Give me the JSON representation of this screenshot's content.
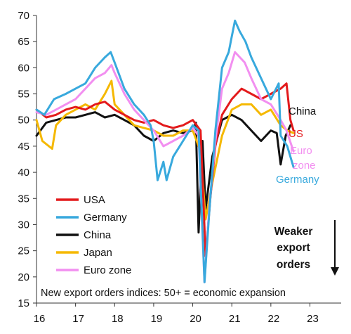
{
  "chart_data": {
    "type": "line",
    "title": "",
    "xlabel": "",
    "ylabel": "",
    "xlim": [
      2016.0,
      2023.8
    ],
    "ylim": [
      15,
      70
    ],
    "grid": false,
    "legend_position": "bottom-left",
    "yticks": [
      15,
      20,
      25,
      30,
      35,
      40,
      45,
      50,
      55,
      60,
      65,
      70
    ],
    "xticks": [
      {
        "value": 2016,
        "label": "16"
      },
      {
        "value": 2017,
        "label": "17"
      },
      {
        "value": 2018,
        "label": "18"
      },
      {
        "value": 2019,
        "label": "19"
      },
      {
        "value": 2020,
        "label": "20"
      },
      {
        "value": 2021,
        "label": "21"
      },
      {
        "value": 2022,
        "label": "22"
      },
      {
        "value": 2023,
        "label": "23"
      }
    ],
    "note": "New export orders indices: 50+ = economic expansion",
    "weaker_label": [
      "Weaker",
      "export",
      "orders"
    ],
    "series": [
      {
        "name": "USA",
        "label": "US",
        "color": "#e31a1c",
        "points": [
          [
            2016.0,
            52
          ],
          [
            2016.25,
            50.5
          ],
          [
            2016.5,
            51
          ],
          [
            2016.75,
            52
          ],
          [
            2017.0,
            52.5
          ],
          [
            2017.25,
            52
          ],
          [
            2017.5,
            53
          ],
          [
            2017.75,
            53.5
          ],
          [
            2018.0,
            52
          ],
          [
            2018.25,
            51
          ],
          [
            2018.5,
            50
          ],
          [
            2018.75,
            49.5
          ],
          [
            2019.0,
            50
          ],
          [
            2019.25,
            49
          ],
          [
            2019.5,
            48.5
          ],
          [
            2019.75,
            49
          ],
          [
            2020.0,
            50
          ],
          [
            2020.2,
            48
          ],
          [
            2020.33,
            24
          ],
          [
            2020.45,
            35
          ],
          [
            2020.58,
            45
          ],
          [
            2020.75,
            51
          ],
          [
            2021.0,
            54
          ],
          [
            2021.25,
            56
          ],
          [
            2021.5,
            55
          ],
          [
            2021.75,
            54
          ],
          [
            2022.0,
            55
          ],
          [
            2022.25,
            56
          ],
          [
            2022.4,
            57
          ],
          [
            2022.5,
            50
          ],
          [
            2022.58,
            48
          ]
        ]
      },
      {
        "name": "Germany",
        "label": "Germany",
        "color": "#38a9dd",
        "points": [
          [
            2016.0,
            52
          ],
          [
            2016.2,
            51
          ],
          [
            2016.45,
            54
          ],
          [
            2016.75,
            55
          ],
          [
            2017.0,
            56
          ],
          [
            2017.25,
            57
          ],
          [
            2017.5,
            60
          ],
          [
            2017.75,
            62
          ],
          [
            2017.9,
            63
          ],
          [
            2018.0,
            61
          ],
          [
            2018.25,
            56
          ],
          [
            2018.5,
            53
          ],
          [
            2018.75,
            51
          ],
          [
            2018.92,
            49
          ],
          [
            2019.0,
            46
          ],
          [
            2019.1,
            38.5
          ],
          [
            2019.25,
            42
          ],
          [
            2019.33,
            38.5
          ],
          [
            2019.5,
            43
          ],
          [
            2019.75,
            46
          ],
          [
            2020.0,
            49
          ],
          [
            2020.15,
            48
          ],
          [
            2020.3,
            19
          ],
          [
            2020.42,
            32
          ],
          [
            2020.58,
            48
          ],
          [
            2020.75,
            60
          ],
          [
            2020.92,
            63
          ],
          [
            2021.0,
            66
          ],
          [
            2021.08,
            69
          ],
          [
            2021.2,
            67
          ],
          [
            2021.35,
            65
          ],
          [
            2021.5,
            62
          ],
          [
            2021.75,
            58
          ],
          [
            2022.0,
            54
          ],
          [
            2022.2,
            57
          ],
          [
            2022.25,
            47
          ],
          [
            2022.42,
            45
          ],
          [
            2022.58,
            41
          ]
        ]
      },
      {
        "name": "China",
        "label": "China",
        "color": "#111111",
        "points": [
          [
            2016.0,
            47
          ],
          [
            2016.25,
            49.5
          ],
          [
            2016.5,
            50
          ],
          [
            2016.75,
            50.5
          ],
          [
            2017.0,
            50.5
          ],
          [
            2017.25,
            51
          ],
          [
            2017.5,
            51.5
          ],
          [
            2017.75,
            50.5
          ],
          [
            2018.0,
            51
          ],
          [
            2018.25,
            50
          ],
          [
            2018.5,
            49
          ],
          [
            2018.75,
            47
          ],
          [
            2019.0,
            46
          ],
          [
            2019.25,
            47.5
          ],
          [
            2019.5,
            48
          ],
          [
            2019.75,
            47.5
          ],
          [
            2020.0,
            48
          ],
          [
            2020.08,
            49.5
          ],
          [
            2020.15,
            28.5
          ],
          [
            2020.25,
            46
          ],
          [
            2020.33,
            33
          ],
          [
            2020.5,
            43
          ],
          [
            2020.75,
            50
          ],
          [
            2021.0,
            51
          ],
          [
            2021.25,
            50
          ],
          [
            2021.5,
            48
          ],
          [
            2021.75,
            46
          ],
          [
            2022.0,
            48
          ],
          [
            2022.15,
            47.5
          ],
          [
            2022.25,
            41.5
          ],
          [
            2022.38,
            47
          ],
          [
            2022.5,
            49
          ]
        ]
      },
      {
        "name": "Japan",
        "label": "",
        "color": "#f5b800",
        "points": [
          [
            2016.0,
            50
          ],
          [
            2016.15,
            46
          ],
          [
            2016.4,
            44.5
          ],
          [
            2016.5,
            49
          ],
          [
            2016.75,
            51
          ],
          [
            2017.0,
            52
          ],
          [
            2017.25,
            53
          ],
          [
            2017.5,
            52
          ],
          [
            2017.75,
            55
          ],
          [
            2017.92,
            57.5
          ],
          [
            2018.0,
            53
          ],
          [
            2018.25,
            51
          ],
          [
            2018.5,
            49
          ],
          [
            2018.75,
            48.5
          ],
          [
            2019.0,
            48
          ],
          [
            2019.25,
            47
          ],
          [
            2019.5,
            47
          ],
          [
            2019.75,
            48
          ],
          [
            2020.0,
            48
          ],
          [
            2020.2,
            44
          ],
          [
            2020.33,
            31
          ],
          [
            2020.5,
            38
          ],
          [
            2020.75,
            47
          ],
          [
            2021.0,
            52
          ],
          [
            2021.25,
            53
          ],
          [
            2021.5,
            53
          ],
          [
            2021.75,
            51
          ],
          [
            2022.0,
            52
          ],
          [
            2022.25,
            49
          ],
          [
            2022.42,
            48
          ],
          [
            2022.58,
            47.5
          ]
        ]
      },
      {
        "name": "Euro zone",
        "label": "Euro zone",
        "color": "#f28ff0",
        "points": [
          [
            2016.0,
            51.5
          ],
          [
            2016.25,
            51
          ],
          [
            2016.5,
            52
          ],
          [
            2016.75,
            53
          ],
          [
            2017.0,
            54
          ],
          [
            2017.25,
            56
          ],
          [
            2017.5,
            58
          ],
          [
            2017.75,
            59
          ],
          [
            2017.92,
            60.5
          ],
          [
            2018.0,
            59
          ],
          [
            2018.25,
            55
          ],
          [
            2018.5,
            52
          ],
          [
            2018.75,
            50
          ],
          [
            2019.0,
            48
          ],
          [
            2019.25,
            45
          ],
          [
            2019.5,
            46
          ],
          [
            2019.75,
            47
          ],
          [
            2020.0,
            48.5
          ],
          [
            2020.15,
            47
          ],
          [
            2020.3,
            19
          ],
          [
            2020.42,
            33
          ],
          [
            2020.58,
            46
          ],
          [
            2020.75,
            56
          ],
          [
            2020.92,
            59
          ],
          [
            2021.08,
            63
          ],
          [
            2021.33,
            61
          ],
          [
            2021.5,
            58
          ],
          [
            2021.75,
            54
          ],
          [
            2022.0,
            53
          ],
          [
            2022.25,
            50
          ],
          [
            2022.4,
            48
          ],
          [
            2022.58,
            44
          ]
        ]
      }
    ],
    "end_labels": [
      {
        "series": "China",
        "text": "China",
        "color": "#111111"
      },
      {
        "series": "USA",
        "text": "US",
        "color": "#e31a1c"
      },
      {
        "series": "Euro zone",
        "text": "Euro",
        "color": "#f28ff0"
      },
      {
        "series": "Euro zone",
        "text": "zone",
        "color": "#f28ff0"
      },
      {
        "series": "Germany",
        "text": "Germany",
        "color": "#38a9dd"
      }
    ],
    "legend": [
      {
        "text": "USA",
        "color": "#e31a1c"
      },
      {
        "text": "Germany",
        "color": "#38a9dd"
      },
      {
        "text": "China",
        "color": "#111111"
      },
      {
        "text": "Japan",
        "color": "#f5b800"
      },
      {
        "text": "Euro zone",
        "color": "#f28ff0"
      }
    ]
  }
}
